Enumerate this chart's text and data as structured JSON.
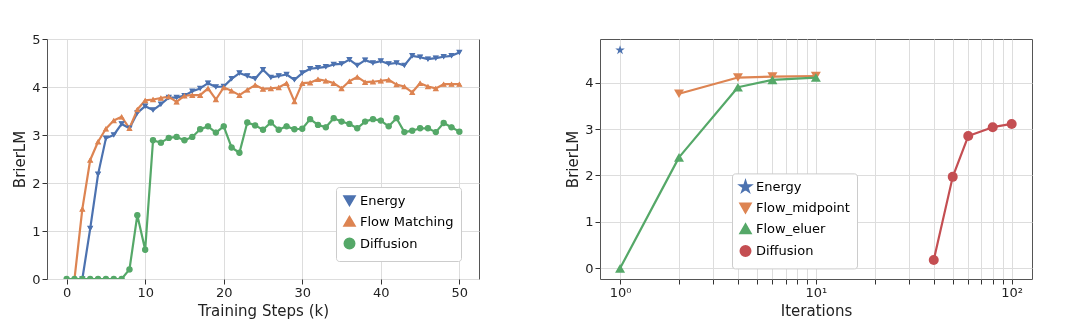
{
  "chart_data": [
    {
      "type": "line",
      "xlabel": "Training Steps (k)",
      "ylabel": "BrierLM",
      "x": [
        0,
        1,
        2,
        3,
        4,
        5,
        6,
        7,
        8,
        9,
        10,
        11,
        12,
        13,
        14,
        15,
        16,
        17,
        18,
        19,
        20,
        21,
        22,
        23,
        24,
        25,
        26,
        27,
        28,
        29,
        30,
        31,
        32,
        33,
        34,
        35,
        36,
        37,
        38,
        39,
        40,
        41,
        42,
        43,
        44,
        45,
        46,
        47,
        48,
        49,
        50
      ],
      "xlim": [
        -2.5,
        52.5
      ],
      "xticks": [
        0,
        10,
        20,
        30,
        40,
        50
      ],
      "ylim": [
        0,
        5
      ],
      "yticks": [
        0,
        1,
        2,
        3,
        4,
        5
      ],
      "grid": true,
      "legend": "bottom right",
      "series": [
        {
          "name": "Energy",
          "color": "#4c72b0",
          "marker": "triangle-down",
          "values": [
            null,
            null,
            0,
            1.05,
            2.18,
            2.93,
            3.0,
            3.23,
            3.14,
            3.46,
            3.6,
            3.52,
            3.64,
            3.78,
            3.78,
            3.82,
            3.91,
            3.97,
            4.08,
            4.0,
            4.01,
            4.17,
            4.29,
            4.23,
            4.17,
            4.36,
            4.2,
            4.23,
            4.26,
            4.15,
            4.29,
            4.38,
            4.4,
            4.42,
            4.47,
            4.48,
            4.57,
            4.45,
            4.56,
            4.5,
            4.54,
            4.48,
            4.5,
            4.45,
            4.65,
            4.62,
            4.58,
            4.6,
            4.63,
            4.65,
            4.72
          ]
        },
        {
          "name": "Flow Matching",
          "color": "#dd8452",
          "marker": "triangle",
          "values": [
            null,
            0,
            1.46,
            2.48,
            2.86,
            3.13,
            3.3,
            3.38,
            3.14,
            3.53,
            3.72,
            3.74,
            3.77,
            3.8,
            3.69,
            3.82,
            3.83,
            3.83,
            3.97,
            3.74,
            3.99,
            3.92,
            3.83,
            3.94,
            4.04,
            3.96,
            3.97,
            3.99,
            4.08,
            3.7,
            4.08,
            4.09,
            4.16,
            4.13,
            4.08,
            3.97,
            4.12,
            4.21,
            4.1,
            4.11,
            4.13,
            4.15,
            4.05,
            4.01,
            3.89,
            4.08,
            4.01,
            3.97,
            4.06,
            4.06,
            4.06
          ]
        },
        {
          "name": "Diffusion",
          "color": "#55a868",
          "marker": "circle",
          "values": [
            0,
            0,
            0,
            0,
            0,
            0,
            0,
            0,
            0.2,
            1.33,
            0.61,
            2.89,
            2.84,
            2.94,
            2.96,
            2.89,
            2.96,
            3.12,
            3.18,
            3.05,
            3.18,
            2.74,
            2.63,
            3.26,
            3.2,
            3.11,
            3.26,
            3.11,
            3.18,
            3.12,
            3.13,
            3.33,
            3.21,
            3.16,
            3.35,
            3.28,
            3.23,
            3.14,
            3.28,
            3.33,
            3.3,
            3.18,
            3.35,
            3.06,
            3.09,
            3.14,
            3.14,
            3.06,
            3.25,
            3.16,
            3.07
          ]
        }
      ]
    },
    {
      "type": "line",
      "xlabel": "Iterations",
      "ylabel": "BrierLM",
      "log": "x",
      "xlim": [
        0.79,
        127
      ],
      "xticks": [
        {
          "value": 1,
          "label": "10⁰"
        },
        {
          "value": 2,
          "label": null
        },
        {
          "value": 3,
          "label": null
        },
        {
          "value": 4,
          "label": null
        },
        {
          "value": 5,
          "label": null
        },
        {
          "value": 6,
          "label": null
        },
        {
          "value": 7,
          "label": null
        },
        {
          "value": 8,
          "label": null
        },
        {
          "value": 9,
          "label": null
        },
        {
          "value": 10,
          "label": "10¹"
        },
        {
          "value": 20,
          "label": null
        },
        {
          "value": 30,
          "label": null
        },
        {
          "value": 40,
          "label": null
        },
        {
          "value": 50,
          "label": null
        },
        {
          "value": 60,
          "label": null
        },
        {
          "value": 70,
          "label": null
        },
        {
          "value": 80,
          "label": null
        },
        {
          "value": 90,
          "label": null
        },
        {
          "value": 100,
          "label": "10²"
        }
      ],
      "ylim": [
        -0.23,
        4.94
      ],
      "yticks": [
        0,
        1,
        2,
        3,
        4
      ],
      "grid": true,
      "legend": "bottom",
      "series": [
        {
          "name": "Energy",
          "color": "#4c72b0",
          "marker": "star",
          "x": [
            1
          ],
          "values": [
            4.7
          ]
        },
        {
          "name": "Flow_midpoint",
          "color": "#dd8452",
          "marker": "triangle-down",
          "x": [
            2,
            4,
            6,
            10
          ],
          "values": [
            3.76,
            4.11,
            4.13,
            4.14
          ]
        },
        {
          "name": "Flow_eluer",
          "color": "#55a868",
          "marker": "triangle",
          "x": [
            1,
            2,
            4,
            6,
            10
          ],
          "values": [
            0,
            2.39,
            3.9,
            4.06,
            4.11
          ]
        },
        {
          "name": "Diffusion",
          "color": "#c44e52",
          "marker": "circle",
          "x": [
            40,
            50,
            60,
            80,
            100
          ],
          "values": [
            0.18,
            1.97,
            2.85,
            3.04,
            3.11
          ]
        }
      ]
    }
  ]
}
